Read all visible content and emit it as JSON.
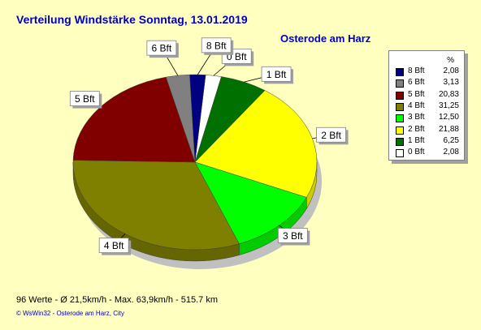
{
  "header": {
    "title": "Verteilung Windstärke  Sonntag, 13.01.2019",
    "location": "Osterode am Harz"
  },
  "footer": {
    "stats": "96 Werte   -   Ø 21,5km/h   -  Max. 63,9km/h   -   515.7 km",
    "credit": "© WsWin32  -  Osterode am Harz, City"
  },
  "legend": {
    "header": "%"
  },
  "chart_data": {
    "type": "pie",
    "title": "Verteilung Windstärke  Sonntag, 13.01.2019",
    "subtitle": "Osterode am Harz",
    "slices": [
      {
        "label": "0 Bft",
        "value": 2.08,
        "display": "2,08",
        "color": "#ffffff"
      },
      {
        "label": "1 Bft",
        "value": 6.25,
        "display": "6,25",
        "color": "#007000"
      },
      {
        "label": "2 Bft",
        "value": 21.88,
        "display": "21,88",
        "color": "#ffff00"
      },
      {
        "label": "3 Bft",
        "value": 12.5,
        "display": "12,50",
        "color": "#00ff00"
      },
      {
        "label": "4 Bft",
        "value": 31.25,
        "display": "31,25",
        "color": "#808000"
      },
      {
        "label": "5 Bft",
        "value": 20.83,
        "display": "20,83",
        "color": "#800000"
      },
      {
        "label": "6 Bft",
        "value": 3.13,
        "display": "3,13",
        "color": "#808080"
      },
      {
        "label": "8 Bft",
        "value": 2.08,
        "display": "2,08",
        "color": "#000080"
      }
    ],
    "legend_order": [
      "8 Bft",
      "6 Bft",
      "5 Bft",
      "4 Bft",
      "3 Bft",
      "2 Bft",
      "1 Bft",
      "0 Bft"
    ],
    "legend_position": "right"
  }
}
